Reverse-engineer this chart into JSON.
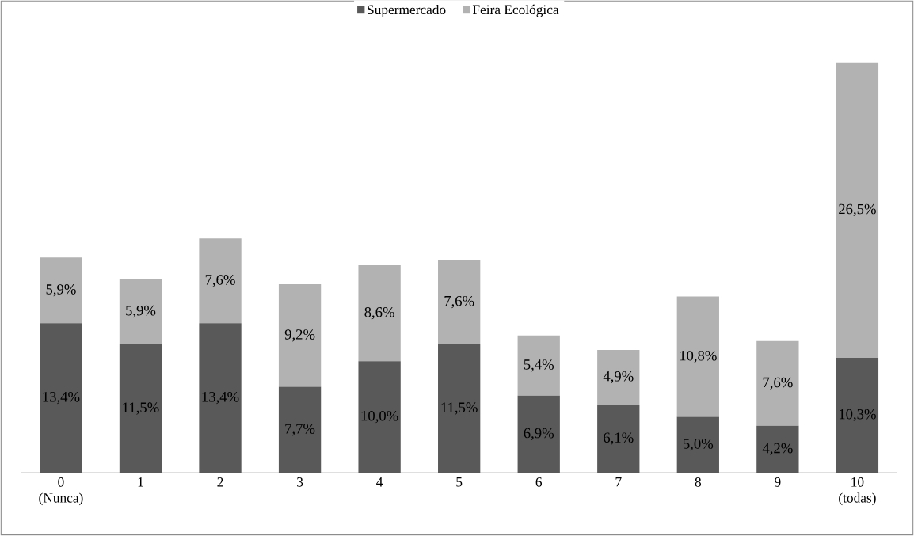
{
  "chart_data": {
    "type": "bar",
    "stacked": true,
    "legend": "top",
    "categories": [
      "0 (Nunca)",
      "1",
      "2",
      "3",
      "4",
      "5",
      "6",
      "7",
      "8",
      "9",
      "10 (todas)"
    ],
    "series": [
      {
        "name": "Supermercado",
        "color": "#595959",
        "values": [
          13.4,
          11.5,
          13.4,
          7.7,
          10.0,
          11.5,
          6.9,
          6.1,
          5.0,
          4.2,
          10.3
        ],
        "value_labels": [
          "13,4%",
          "11,5%",
          "13,4%",
          "7,7%",
          "10,0%",
          "11,5%",
          "6,9%",
          "6,1%",
          "5,0%",
          "4,2%",
          "10,3%"
        ]
      },
      {
        "name": "Feira Ecológica",
        "color": "#b2b2b2",
        "values": [
          5.9,
          5.9,
          7.6,
          9.2,
          8.6,
          7.6,
          5.4,
          4.9,
          10.8,
          7.6,
          26.5
        ],
        "value_labels": [
          "5,9%",
          "5,9%",
          "7,6%",
          "9,2%",
          "8,6%",
          "7,6%",
          "5,4%",
          "4,9%",
          "10,8%",
          "7,6%",
          "26,5%"
        ]
      }
    ]
  }
}
